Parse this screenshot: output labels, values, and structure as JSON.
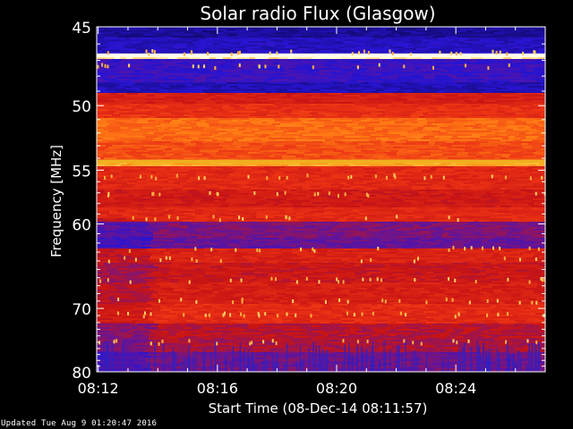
{
  "chart_data": {
    "type": "heatmap",
    "title": "Solar radio Flux (Glasgow)",
    "ylabel": "Frequency [MHz]",
    "xlabel": "Start Time (08-Dec-14 08:11:57)",
    "y_ticks": [
      "45",
      "50",
      "55",
      "60",
      "70",
      "80"
    ],
    "y_tick_values": [
      45,
      50,
      55,
      60,
      70,
      80
    ],
    "x_ticks": [
      "08:12",
      "08:16",
      "08:20",
      "08:24"
    ],
    "x_tick_values_minutes": [
      12,
      16,
      20,
      24
    ],
    "xlim_minutes": [
      11.95,
      27.0
    ],
    "ylim_mhz": [
      45,
      80
    ],
    "colors": {
      "background": "#000000",
      "axis": "#ffffff",
      "low": "#1a10c8",
      "mid": "#c81818",
      "high": "#ff9a20",
      "peak": "#ffffd0"
    }
  },
  "footer": {
    "updated": "Updated Tue Aug  9 01:20:47 2016"
  }
}
